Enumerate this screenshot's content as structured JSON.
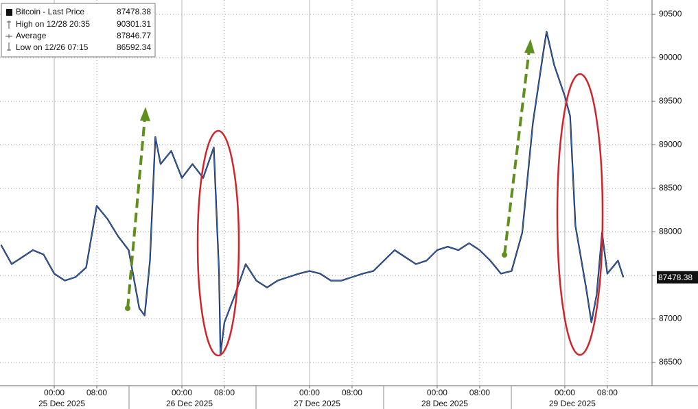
{
  "chart_data": {
    "type": "line",
    "x": [
      "2025-12-24 14:00",
      "2025-12-24 16:00",
      "2025-12-24 18:00",
      "2025-12-24 20:00",
      "2025-12-24 22:00",
      "2025-12-25 00:00",
      "2025-12-25 02:00",
      "2025-12-25 04:00",
      "2025-12-25 06:00",
      "2025-12-25 08:00",
      "2025-12-25 10:00",
      "2025-12-25 12:00",
      "2025-12-25 14:00",
      "2025-12-25 16:00",
      "2025-12-25 17:00",
      "2025-12-25 18:00",
      "2025-12-25 19:00",
      "2025-12-25 20:00",
      "2025-12-25 22:00",
      "2025-12-26 00:00",
      "2025-12-26 02:00",
      "2025-12-26 04:00",
      "2025-12-26 06:00",
      "2025-12-26 07:00",
      "2025-12-26 07:15",
      "2025-12-26 08:00",
      "2025-12-26 10:00",
      "2025-12-26 12:00",
      "2025-12-26 14:00",
      "2025-12-26 16:00",
      "2025-12-26 18:00",
      "2025-12-26 20:00",
      "2025-12-26 22:00",
      "2025-12-27 00:00",
      "2025-12-27 02:00",
      "2025-12-27 04:00",
      "2025-12-27 06:00",
      "2025-12-27 08:00",
      "2025-12-27 10:00",
      "2025-12-27 12:00",
      "2025-12-27 14:00",
      "2025-12-27 16:00",
      "2025-12-27 18:00",
      "2025-12-27 20:00",
      "2025-12-27 22:00",
      "2025-12-28 00:00",
      "2025-12-28 02:00",
      "2025-12-28 04:00",
      "2025-12-28 06:00",
      "2025-12-28 08:00",
      "2025-12-28 10:00",
      "2025-12-28 12:00",
      "2025-12-28 14:00",
      "2025-12-28 16:00",
      "2025-12-28 18:00",
      "2025-12-28 20:00",
      "2025-12-28 20:35",
      "2025-12-28 22:00",
      "2025-12-29 00:00",
      "2025-12-29 01:00",
      "2025-12-29 02:00",
      "2025-12-29 04:00",
      "2025-12-29 05:00",
      "2025-12-29 06:00",
      "2025-12-29 07:00",
      "2025-12-29 08:00",
      "2025-12-29 10:00",
      "2025-12-29 11:00"
    ],
    "series": [
      {
        "name": "Bitcoin - Last Price",
        "color": "#2f66c4",
        "values": [
          87850,
          87630,
          87710,
          87790,
          87740,
          87520,
          87440,
          87480,
          87590,
          88300,
          88150,
          87950,
          87790,
          87120,
          87040,
          87670,
          89090,
          88780,
          88930,
          88620,
          88780,
          88620,
          88970,
          87520,
          86592.34,
          86960,
          87280,
          87630,
          87440,
          87360,
          87440,
          87480,
          87520,
          87550,
          87520,
          87440,
          87440,
          87480,
          87520,
          87550,
          87670,
          87790,
          87710,
          87630,
          87670,
          87790,
          87830,
          87790,
          87870,
          87790,
          87670,
          87520,
          87550,
          87990,
          89250,
          90080,
          90301.31,
          89920,
          89560,
          89330,
          88070,
          87360,
          86960,
          87280,
          87990,
          87520,
          87670,
          87478.38
        ]
      }
    ],
    "stats": [
      {
        "name": "High on 12/28 20:35",
        "value": 90301.31
      },
      {
        "name": "Average",
        "value": 87846.77
      },
      {
        "name": "Low on 12/26 07:15",
        "value": 86592.34
      }
    ],
    "xlim": [
      "2025-12-24 13:48",
      "2025-12-29 16:24"
    ],
    "xticks": [
      {
        "value": "2025-12-25 00:00",
        "label": "00:00"
      },
      {
        "value": "2025-12-25 08:00",
        "label": "08:00"
      },
      {
        "value": "2025-12-26 00:00",
        "label": "00:00"
      },
      {
        "value": "2025-12-26 08:00",
        "label": "08:00"
      },
      {
        "value": "2025-12-27 00:00",
        "label": "00:00"
      },
      {
        "value": "2025-12-27 08:00",
        "label": "08:00"
      },
      {
        "value": "2025-12-28 00:00",
        "label": "00:00"
      },
      {
        "value": "2025-12-28 08:00",
        "label": "08:00"
      },
      {
        "value": "2025-12-29 00:00",
        "label": "00:00"
      },
      {
        "value": "2025-12-29 08:00",
        "label": "08:00"
      }
    ],
    "date_ticks": [
      {
        "value": "2025-12-25 04:00",
        "label": "25 Dec 2025"
      },
      {
        "value": "2025-12-26 04:00",
        "label": "26 Dec 2025"
      },
      {
        "value": "2025-12-27 04:00",
        "label": "27 Dec 2025"
      },
      {
        "value": "2025-12-28 04:00",
        "label": "28 Dec 2025"
      },
      {
        "value": "2025-12-29 04:00",
        "label": "29 Dec 2025"
      }
    ],
    "ylim": [
      86232,
      90665
    ],
    "yticks": [
      86500,
      87000,
      87500,
      88000,
      88500,
      89000,
      89500,
      90000,
      90500
    ],
    "grid": true
  }
}
